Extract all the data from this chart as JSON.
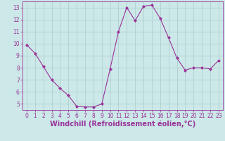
{
  "x": [
    0,
    1,
    2,
    3,
    4,
    5,
    6,
    7,
    8,
    9,
    10,
    11,
    12,
    13,
    14,
    15,
    16,
    17,
    18,
    19,
    20,
    21,
    22,
    23
  ],
  "y": [
    9.9,
    9.2,
    8.1,
    7.0,
    6.3,
    5.7,
    4.8,
    4.75,
    4.75,
    5.0,
    7.9,
    11.0,
    13.0,
    11.9,
    13.1,
    13.2,
    12.1,
    10.5,
    8.8,
    7.8,
    8.0,
    8.0,
    7.9,
    8.6
  ],
  "line_color": "#993399",
  "marker": "D",
  "marker_size": 2.0,
  "bg_color": "#cce8e8",
  "grid_color": "#aacccc",
  "xlabel": "Windchill (Refroidissement éolien,°C)",
  "xlim": [
    -0.5,
    23.5
  ],
  "ylim": [
    4.5,
    13.5
  ],
  "yticks": [
    5,
    6,
    7,
    8,
    9,
    10,
    11,
    12,
    13
  ],
  "xticks": [
    0,
    1,
    2,
    3,
    4,
    5,
    6,
    7,
    8,
    9,
    10,
    11,
    12,
    13,
    14,
    15,
    16,
    17,
    18,
    19,
    20,
    21,
    22,
    23
  ],
  "tick_fontsize": 5.5,
  "xlabel_fontsize": 7.0,
  "axis_label_color": "#993399",
  "linewidth": 0.8
}
